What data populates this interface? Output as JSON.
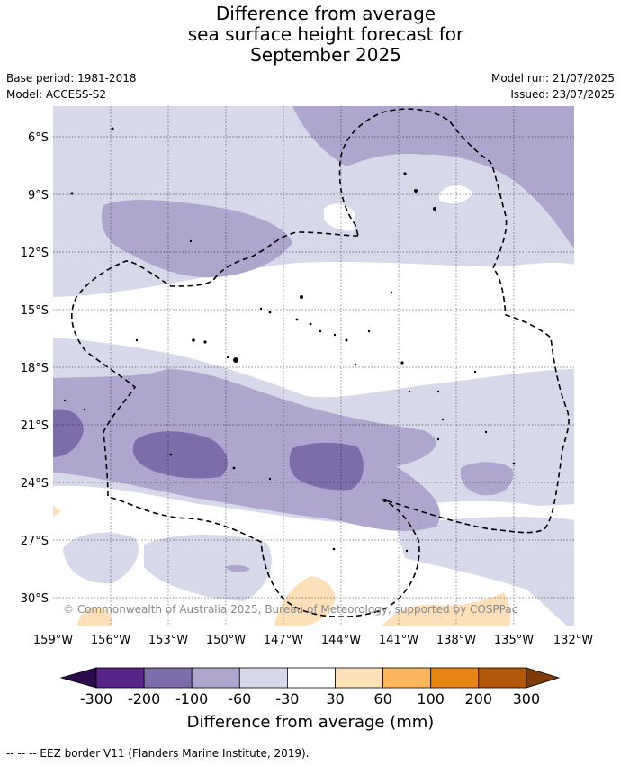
{
  "header": {
    "title_lines": [
      "Difference from average",
      "sea surface height forecast for",
      "September 2025"
    ],
    "base_period": "Base period: 1981-2018",
    "model": "Model: ACCESS-S2",
    "model_run": "Model run: 21/07/2025",
    "issued": "Issued: 23/07/2025"
  },
  "map": {
    "lat_labels": [
      "6°S",
      "9°S",
      "12°S",
      "15°S",
      "18°S",
      "21°S",
      "24°S",
      "27°S",
      "30°S"
    ],
    "lon_labels": [
      "159°W",
      "156°W",
      "153°W",
      "150°W",
      "147°W",
      "144°W",
      "141°W",
      "138°W",
      "135°W",
      "132°W"
    ],
    "copyright": "© Commonwealth of Australia 2025, Bureau of Meteorology, supported by COSPPac"
  },
  "colorbar": {
    "ticks": [
      "-300",
      "-200",
      "-100",
      "-60",
      "-30",
      "30",
      "60",
      "100",
      "200",
      "300"
    ],
    "colors": [
      "#2d0a4e",
      "#5a2389",
      "#7c6ca8",
      "#aea6cf",
      "#d7d8e9",
      "#ffffff",
      "#fde0b7",
      "#fbb65c",
      "#e68414",
      "#b35708",
      "#7f3b08"
    ],
    "label": "Difference from average (mm)"
  },
  "legend": {
    "text": "--  --  -- EEZ border V11 (Flanders Marine Institute, 2019)."
  },
  "colors": {
    "class_-60_-30": "#d7d8e9",
    "class_-100_-60": "#aea6cf",
    "class_-200_-100": "#7c6ca8",
    "class_30_60": "#fde0b7"
  }
}
